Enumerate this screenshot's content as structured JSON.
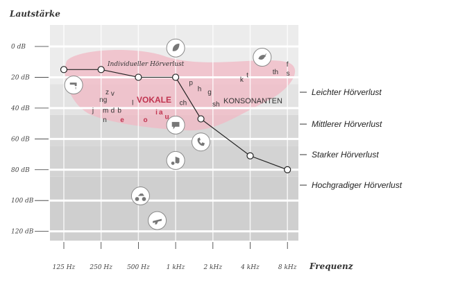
{
  "chart_data": {
    "type": "line",
    "ylabel": "Lautstärke",
    "xlabel": "Frequenz",
    "categories": [
      "125 Hz",
      "250 Hz",
      "500 Hz",
      "1 kHz",
      "2 kHz",
      "4 kHz",
      "8 kHz"
    ],
    "y_ticks": [
      "0 dB",
      "20 dB",
      "40 dB",
      "60 dB",
      "80 dB",
      "100 dB",
      "120 dB"
    ],
    "y_values": [
      0,
      20,
      40,
      60,
      80,
      100,
      120
    ],
    "ylim": [
      -10,
      128
    ],
    "series": [
      {
        "name": "Individueller Hörverlust",
        "x": [
          125,
          250,
          500,
          1000,
          1600,
          4000,
          8000
        ],
        "values": [
          15,
          15,
          20,
          20,
          47,
          71,
          80
        ]
      }
    ],
    "zones": [
      {
        "label": "Leichter Hörverlust",
        "from": 20,
        "to": 40
      },
      {
        "label": "Mittlerer Hörverlust",
        "from": 40,
        "to": 60
      },
      {
        "label": "Starker Hörverlust",
        "from": 60,
        "to": 80
      },
      {
        "label": "Hochgradiger Hörverlust",
        "from": 80,
        "to": 128
      }
    ],
    "grid": true,
    "speech_banana": {
      "vokale_label": "VOKALE",
      "konsonanten_label": "KONSONANTEN",
      "sounds": [
        {
          "t": "z",
          "hz": 280,
          "db": 31,
          "red": false
        },
        {
          "t": "v",
          "hz": 310,
          "db": 32,
          "red": false
        },
        {
          "t": "ng",
          "hz": 260,
          "db": 36,
          "red": false
        },
        {
          "t": "j",
          "hz": 215,
          "db": 43,
          "red": false
        },
        {
          "t": "m",
          "hz": 272,
          "db": 43,
          "red": false
        },
        {
          "t": "d",
          "hz": 310,
          "db": 43,
          "red": false
        },
        {
          "t": "b",
          "hz": 352,
          "db": 43,
          "red": false
        },
        {
          "t": "n",
          "hz": 268,
          "db": 49,
          "red": false
        },
        {
          "t": "e",
          "hz": 370,
          "db": 49,
          "red": true
        },
        {
          "t": "o",
          "hz": 570,
          "db": 49,
          "red": true
        },
        {
          "t": "u",
          "hz": 850,
          "db": 47,
          "red": true
        },
        {
          "t": "i",
          "hz": 700,
          "db": 44,
          "red": true
        },
        {
          "t": "a",
          "hz": 760,
          "db": 44,
          "red": true
        },
        {
          "t": "l",
          "hz": 450,
          "db": 38,
          "red": false
        },
        {
          "t": "ch",
          "hz": 1150,
          "db": 38,
          "red": false
        },
        {
          "t": "p",
          "hz": 1330,
          "db": 25,
          "red": false
        },
        {
          "t": "h",
          "hz": 1560,
          "db": 29,
          "red": false
        },
        {
          "t": "g",
          "hz": 1880,
          "db": 31,
          "red": false
        },
        {
          "t": "sh",
          "hz": 2120,
          "db": 39,
          "red": false
        },
        {
          "t": "k",
          "hz": 3420,
          "db": 23,
          "red": false
        },
        {
          "t": "t",
          "hz": 3800,
          "db": 20,
          "red": false
        },
        {
          "t": "th",
          "hz": 6400,
          "db": 18,
          "red": false
        },
        {
          "t": "f",
          "hz": 8000,
          "db": 13,
          "red": false
        },
        {
          "t": "s",
          "hz": 8100,
          "db": 19,
          "red": false
        }
      ]
    },
    "sound_icons": [
      {
        "name": "leaf-icon",
        "hz": 1000,
        "db": 1
      },
      {
        "name": "bird-icon",
        "hz": 5000,
        "db": 7
      },
      {
        "name": "faucet-icon",
        "hz": 150,
        "db": 25
      },
      {
        "name": "speech-icon",
        "hz": 1000,
        "db": 51
      },
      {
        "name": "phone-icon",
        "hz": 1600,
        "db": 62
      },
      {
        "name": "music-icon",
        "hz": 1000,
        "db": 74
      },
      {
        "name": "motorcycle-icon",
        "hz": 520,
        "db": 97
      },
      {
        "name": "airplane-icon",
        "hz": 710,
        "db": 113
      }
    ]
  }
}
